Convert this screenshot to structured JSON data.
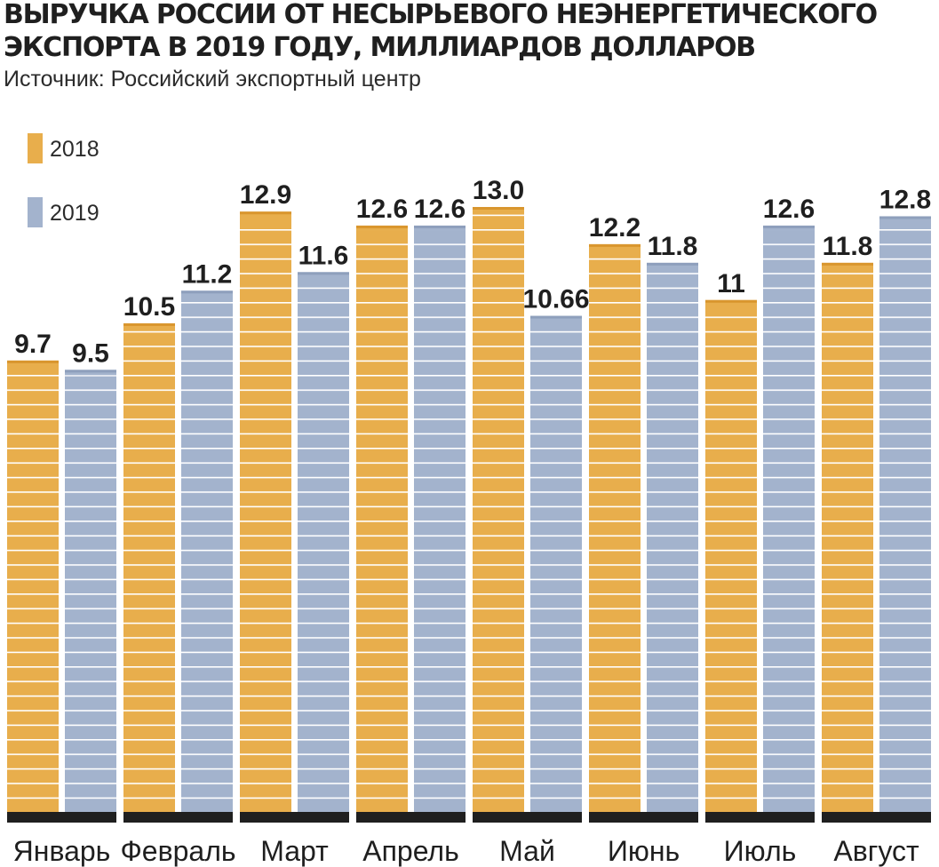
{
  "title": "ВЫРУЧКА РОССИИ ОТ НЕСЫРЬЕВОГО НЕЭНЕРГЕТИЧЕСКОГО ЭКСПОРТА В 2019 ГОДУ, МИЛЛИАРДОВ ДОЛЛАРОВ",
  "source": "Источник: Российский экспортный центр",
  "colors": {
    "series_2018": "#e8ae4c",
    "series_2019": "#a3b3cd",
    "baseline": "#1f1f1f",
    "stripe": "#ffffff"
  },
  "chart_data": {
    "type": "bar",
    "title": "ВЫРУЧКА РОССИИ ОТ НЕСЫРЬЕВОГО НЕЭНЕРГЕТИЧЕСКОГО ЭКСПОРТА В 2019 ГОДУ, МИЛЛИАРДОВ ДОЛЛАРОВ",
    "categories": [
      "Январь",
      "Февраль",
      "Март",
      "Апрель",
      "Май",
      "Июнь",
      "Июль",
      "Август"
    ],
    "series": [
      {
        "name": "2018",
        "values": [
          9.7,
          10.5,
          12.9,
          12.6,
          13.0,
          12.2,
          11,
          11.8
        ],
        "labels": [
          "9.7",
          "10.5",
          "12.9",
          "12.6",
          "13.0",
          "12.2",
          "11",
          "11.8"
        ]
      },
      {
        "name": "2019",
        "values": [
          9.5,
          11.2,
          11.6,
          12.6,
          10.66,
          11.8,
          12.6,
          12.8
        ],
        "labels": [
          "9.5",
          "11.2",
          "11.6",
          "12.6",
          "10.66",
          "11.8",
          "12.6",
          "12.8"
        ]
      }
    ],
    "legend_position": "top-left",
    "grid": false,
    "ylim": [
      0,
      13
    ]
  }
}
